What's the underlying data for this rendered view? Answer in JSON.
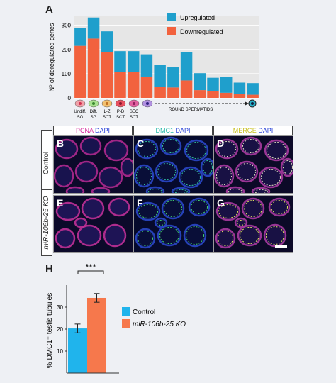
{
  "panels": {
    "A": "A",
    "B": "B",
    "C": "C",
    "D": "D",
    "E": "E",
    "F": "F",
    "G": "G",
    "H": "H"
  },
  "colors": {
    "upregulated": "#1f9fcc",
    "downregulated": "#f2623e",
    "control": "#20b4ec",
    "ko": "#f6784c",
    "pcna": "#d6289c",
    "dapi": "#2b44d8",
    "dmc1": "#25b8a8",
    "merge": "#c8c020"
  },
  "chart_data": [
    {
      "type": "bar",
      "stacked": true,
      "ylabel": "Nº of deregulated genes",
      "ylim": [
        0,
        340
      ],
      "yticks": [
        0,
        100,
        200,
        300
      ],
      "grid": true,
      "legend_position": "top-right",
      "series": [
        {
          "name": "Downregulated",
          "values": [
            215,
            245,
            190,
            107,
            107,
            88,
            45,
            43,
            72,
            32,
            28,
            21,
            16,
            13
          ]
        },
        {
          "name": "Upregulated",
          "values": [
            73,
            87,
            85,
            86,
            86,
            92,
            91,
            83,
            118,
            70,
            55,
            65,
            47,
            48
          ]
        }
      ],
      "stage_labels": [
        [
          "Undiff.",
          "SG"
        ],
        [
          "Diff.",
          "SG"
        ],
        [
          "L-Z",
          "SCT"
        ],
        [
          "P-D",
          "SCT"
        ],
        [
          "SEC",
          "SCT"
        ]
      ],
      "round_spermatids_label": "ROUND SPERMATIDS"
    },
    {
      "type": "bar",
      "categories": [
        "Control",
        "miR-106b-25 KO"
      ],
      "values": [
        20.3,
        34.2
      ],
      "errors": [
        2.0,
        2.0
      ],
      "ylabel": "% DMC1⁺ testis tubules",
      "ylim": [
        0,
        40
      ],
      "yticks": [
        10,
        20,
        30
      ],
      "significance": "***"
    }
  ],
  "micrographs": {
    "headers": [
      {
        "first": "PCNA",
        "second": "DAPI"
      },
      {
        "first": "DMC1",
        "second": "DAPI"
      },
      {
        "first": "MERGE",
        "second": "DAPI"
      }
    ],
    "rows": [
      "Control",
      "miR-106b-25 KO"
    ]
  }
}
